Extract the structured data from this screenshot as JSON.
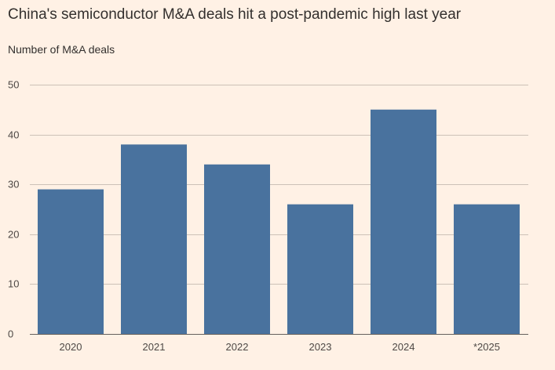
{
  "chart_data": {
    "type": "bar",
    "title": "China's semiconductor M&A deals hit a post-pandemic high last year",
    "subtitle": "Number of M&A deals",
    "categories": [
      "2020",
      "2021",
      "2022",
      "2023",
      "2024",
      "*2025"
    ],
    "values": [
      29,
      38,
      34,
      26,
      45,
      26
    ],
    "ylim": [
      0,
      50
    ],
    "yticks": [
      0,
      10,
      20,
      30,
      40,
      50
    ],
    "grid": true,
    "bar_color": "#49729e",
    "grid_color": "#ccc1b7",
    "text_color": "#33302e"
  }
}
